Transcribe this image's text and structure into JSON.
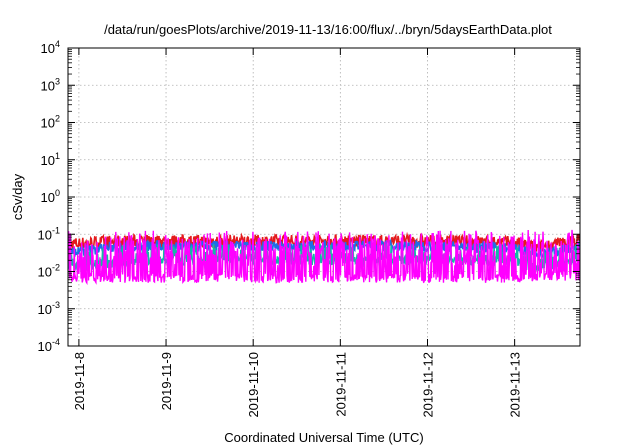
{
  "chart_data": {
    "type": "line",
    "title": "/data/run/goesPlots/archive/2019-11-13/16:00/flux/../bryn/5daysEarthData.plot",
    "xlabel": "Coordinated Universal Time (UTC)",
    "ylabel": "cSv/day",
    "y_scale": "log",
    "ylim": [
      0.0001,
      10000
    ],
    "y_ticks": [
      {
        "value": 0.0001,
        "base": "10",
        "exp": "-4"
      },
      {
        "value": 0.001,
        "base": "10",
        "exp": "-3"
      },
      {
        "value": 0.01,
        "base": "10",
        "exp": "-2"
      },
      {
        "value": 0.1,
        "base": "10",
        "exp": "-1"
      },
      {
        "value": 1,
        "base": "10",
        "exp": "0"
      },
      {
        "value": 10,
        "base": "10",
        "exp": "1"
      },
      {
        "value": 100,
        "base": "10",
        "exp": "2"
      },
      {
        "value": 1000,
        "base": "10",
        "exp": "3"
      },
      {
        "value": 10000,
        "base": "10",
        "exp": "4"
      }
    ],
    "xlim": [
      "2019-11-07T21:00",
      "2019-11-13T18:00"
    ],
    "x_ticks": [
      {
        "value": "2019-11-08",
        "label": "2019-11-8"
      },
      {
        "value": "2019-11-09",
        "label": "2019-11-9"
      },
      {
        "value": "2019-11-10",
        "label": "2019-11-10"
      },
      {
        "value": "2019-11-11",
        "label": "2019-11-11"
      },
      {
        "value": "2019-11-12",
        "label": "2019-11-12"
      },
      {
        "value": "2019-11-13",
        "label": "2019-11-13"
      }
    ],
    "grid": true,
    "legend": "none",
    "series": [
      {
        "color": "#e41a1c",
        "x": [
          "2019-11-07T21:00",
          "2019-11-08T12:00",
          "2019-11-09T06:00",
          "2019-11-10T00:00",
          "2019-11-10T18:00",
          "2019-11-11T12:00",
          "2019-11-12T06:00",
          "2019-11-13T00:00",
          "2019-11-13T06:00",
          "2019-11-13T18:00"
        ],
        "y": [
          0.05,
          0.06,
          0.06,
          0.06,
          0.06,
          0.06,
          0.06,
          0.055,
          0.04,
          0.065
        ]
      },
      {
        "color": "#1e6fe6",
        "x": [
          "2019-11-07T21:00",
          "2019-11-08T12:00",
          "2019-11-09T06:00",
          "2019-11-10T00:00",
          "2019-11-10T18:00",
          "2019-11-11T12:00",
          "2019-11-12T06:00",
          "2019-11-13T00:00",
          "2019-11-13T06:00",
          "2019-11-13T18:00"
        ],
        "y": [
          0.03,
          0.045,
          0.045,
          0.045,
          0.045,
          0.045,
          0.045,
          0.04,
          0.025,
          0.045
        ]
      },
      {
        "color": "#14b8a6",
        "x": [
          "2019-11-07T21:00",
          "2019-11-08T12:00",
          "2019-11-09T06:00",
          "2019-11-10T00:00",
          "2019-11-10T18:00",
          "2019-11-11T12:00",
          "2019-11-12T06:00",
          "2019-11-13T00:00",
          "2019-11-13T06:00",
          "2019-11-13T18:00"
        ],
        "y": [
          0.012,
          0.018,
          0.02,
          0.02,
          0.02,
          0.02,
          0.02,
          0.018,
          0.012,
          0.02
        ]
      },
      {
        "color": "#ff00ff",
        "x": [
          "2019-11-07T21:00",
          "2019-11-08T12:00",
          "2019-11-09T06:00",
          "2019-11-10T00:00",
          "2019-11-10T18:00",
          "2019-11-11T12:00",
          "2019-11-12T06:00",
          "2019-11-13T00:00",
          "2019-11-13T06:00",
          "2019-11-13T18:00"
        ],
        "y": [
          0.007,
          0.007,
          0.007,
          0.007,
          0.007,
          0.007,
          0.007,
          0.007,
          0.008,
          0.008
        ]
      }
    ]
  }
}
